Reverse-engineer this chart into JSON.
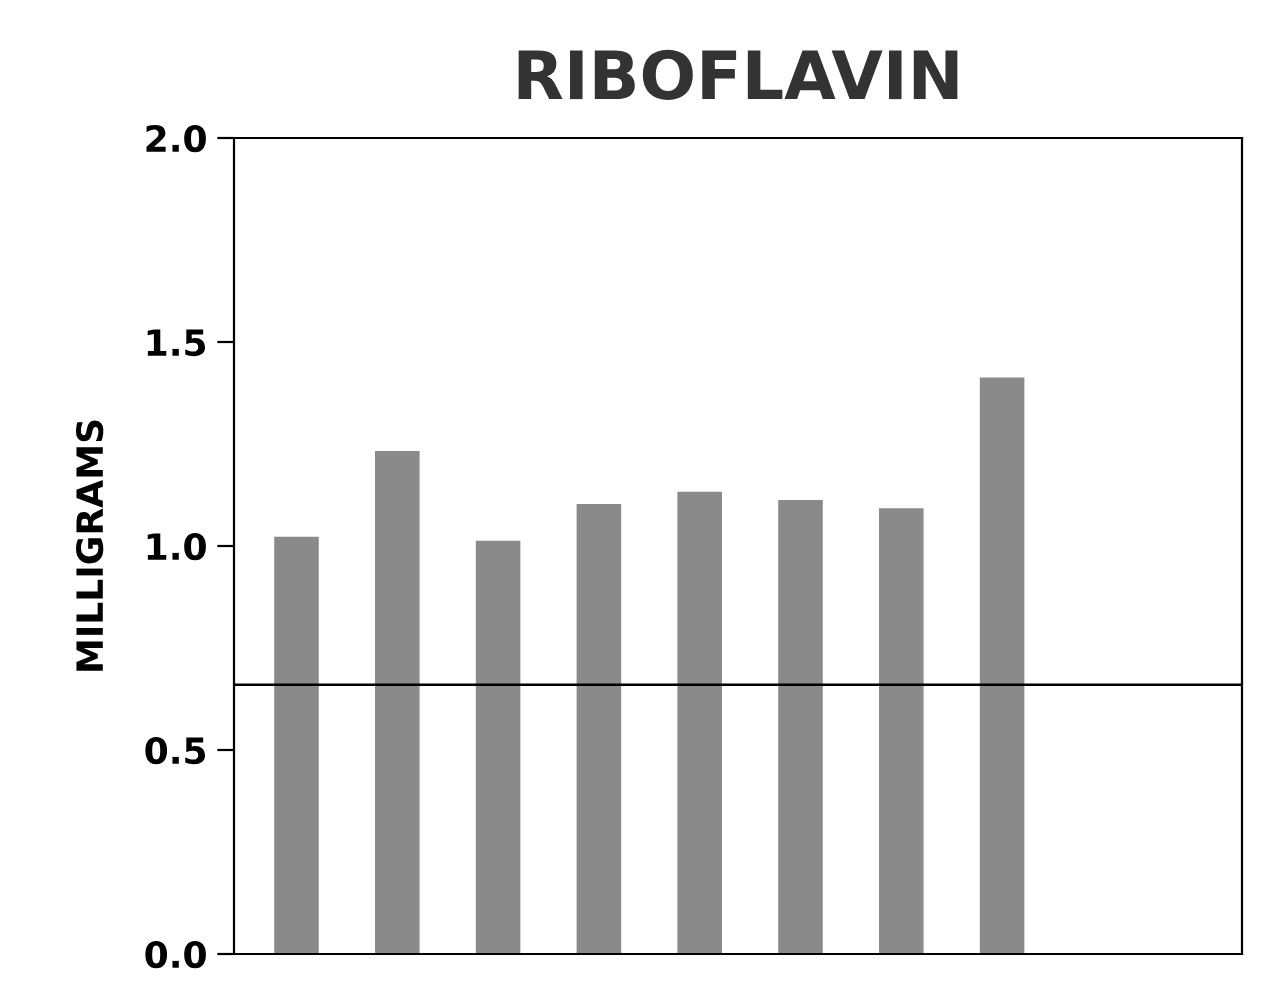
{
  "chart_data": {
    "type": "bar",
    "title": "RIBOFLAVIN",
    "ylabel": "MILLIGRAMS",
    "categories": [
      null,
      null,
      null,
      null,
      null,
      null,
      null,
      null
    ],
    "values": [
      1.02,
      1.23,
      1.01,
      1.1,
      1.13,
      1.11,
      1.09,
      1.41
    ],
    "color": "#8a8a8a",
    "ylim": [
      0,
      2.0
    ],
    "yticks": [
      {
        "value": 0,
        "label": "0.0"
      },
      0.5,
      {
        "value": 1,
        "label": "1.0"
      },
      1.5,
      {
        "value": 2,
        "label": "2.0"
      }
    ],
    "tick_labels": "y",
    "ref_lines": [
      {
        "axis": "y",
        "value": 0.66,
        "color": "#000000"
      }
    ]
  }
}
